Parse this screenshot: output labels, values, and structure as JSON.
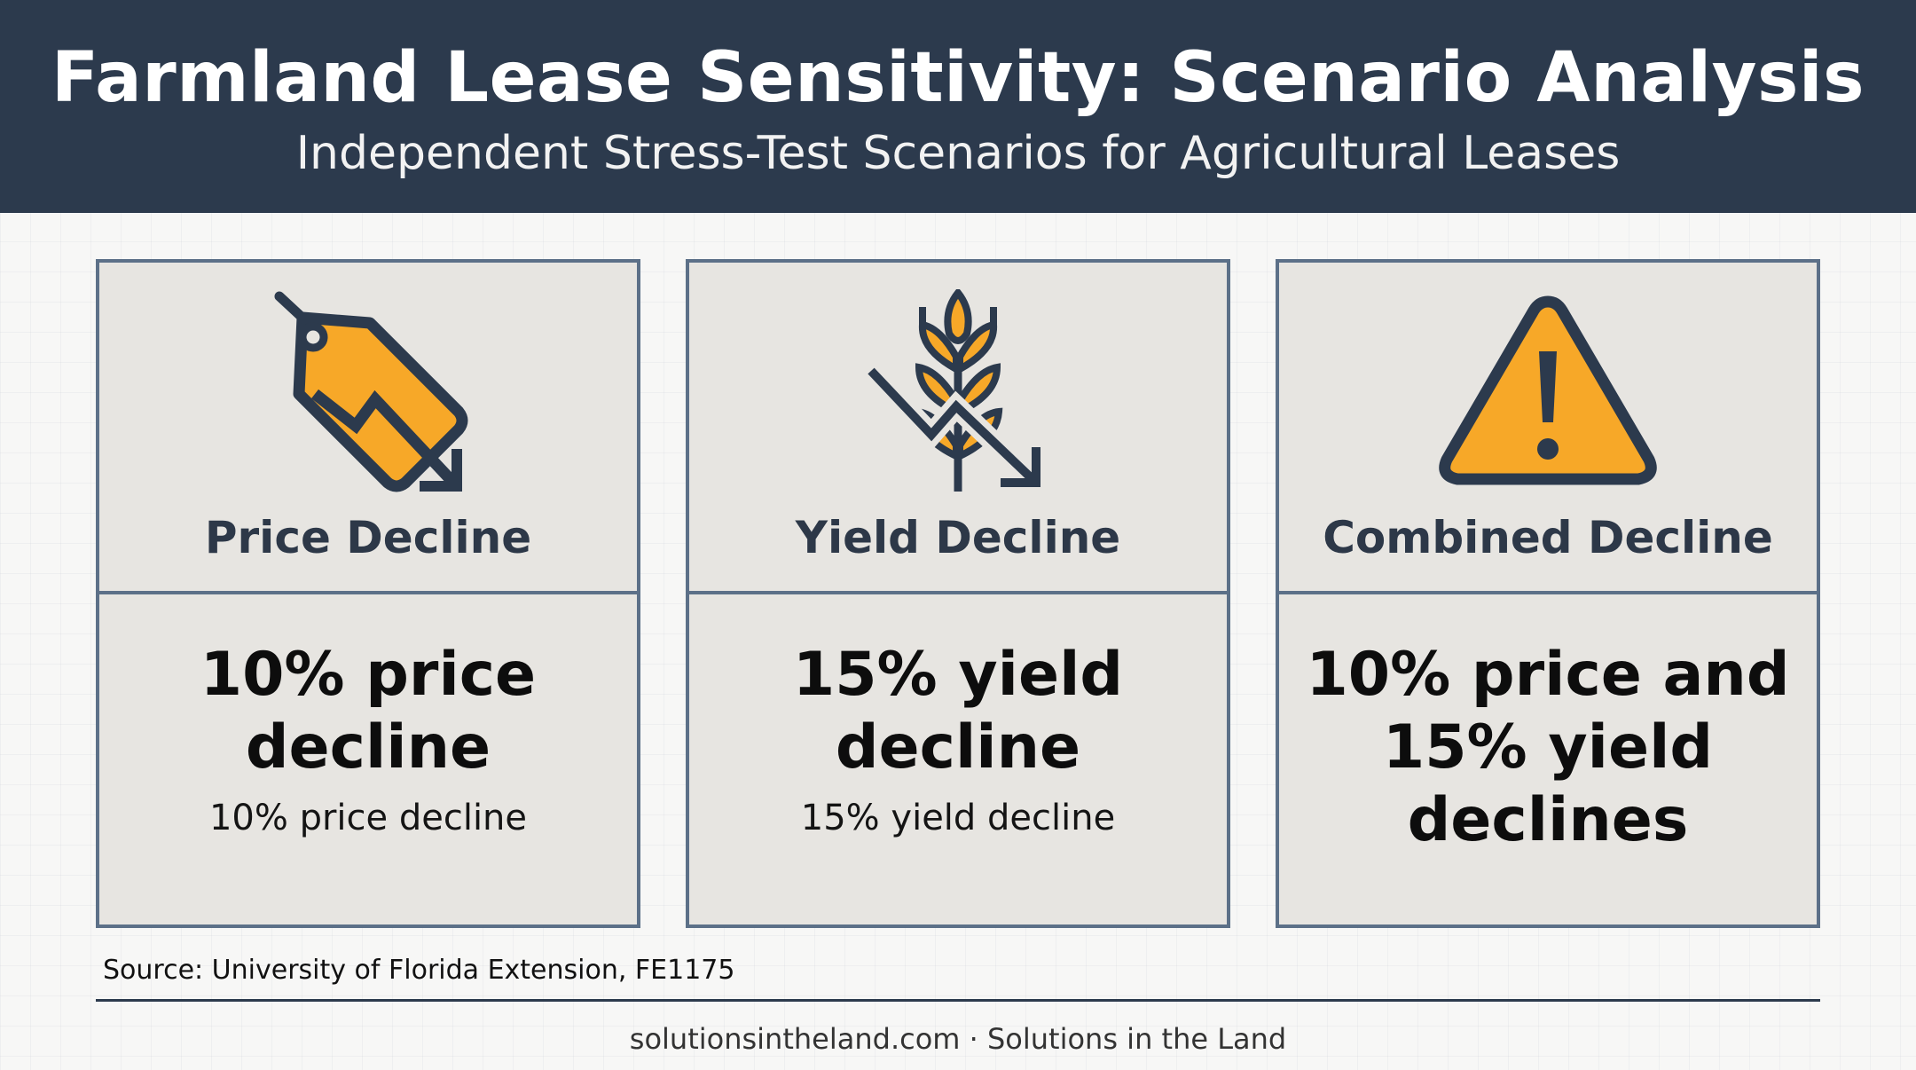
{
  "header": {
    "title": "Farmland Lease Sensitivity: Scenario Analysis",
    "subtitle": "Independent Stress-Test Scenarios for Agricultural Leases"
  },
  "colors": {
    "header_bg": "#2c3a4d",
    "card_bg": "#e7e5e1",
    "card_border": "#5c7088",
    "icon_accent": "#f7a828",
    "icon_stroke": "#2c3a4d"
  },
  "cards": [
    {
      "icon": "price-tag-down-icon",
      "title": "Price Decline",
      "stat": "10% price decline",
      "detail": "10% price decline"
    },
    {
      "icon": "wheat-down-icon",
      "title": "Yield Decline",
      "stat": "15% yield decline",
      "detail": "15% yield decline"
    },
    {
      "icon": "warning-icon",
      "title": "Combined Decline",
      "stat": "10% price and 15% yield declines",
      "detail": ""
    }
  ],
  "source": "Source: University of Florida Extension, FE1175",
  "footer": "solutionsintheland.com · Solutions in the Land"
}
